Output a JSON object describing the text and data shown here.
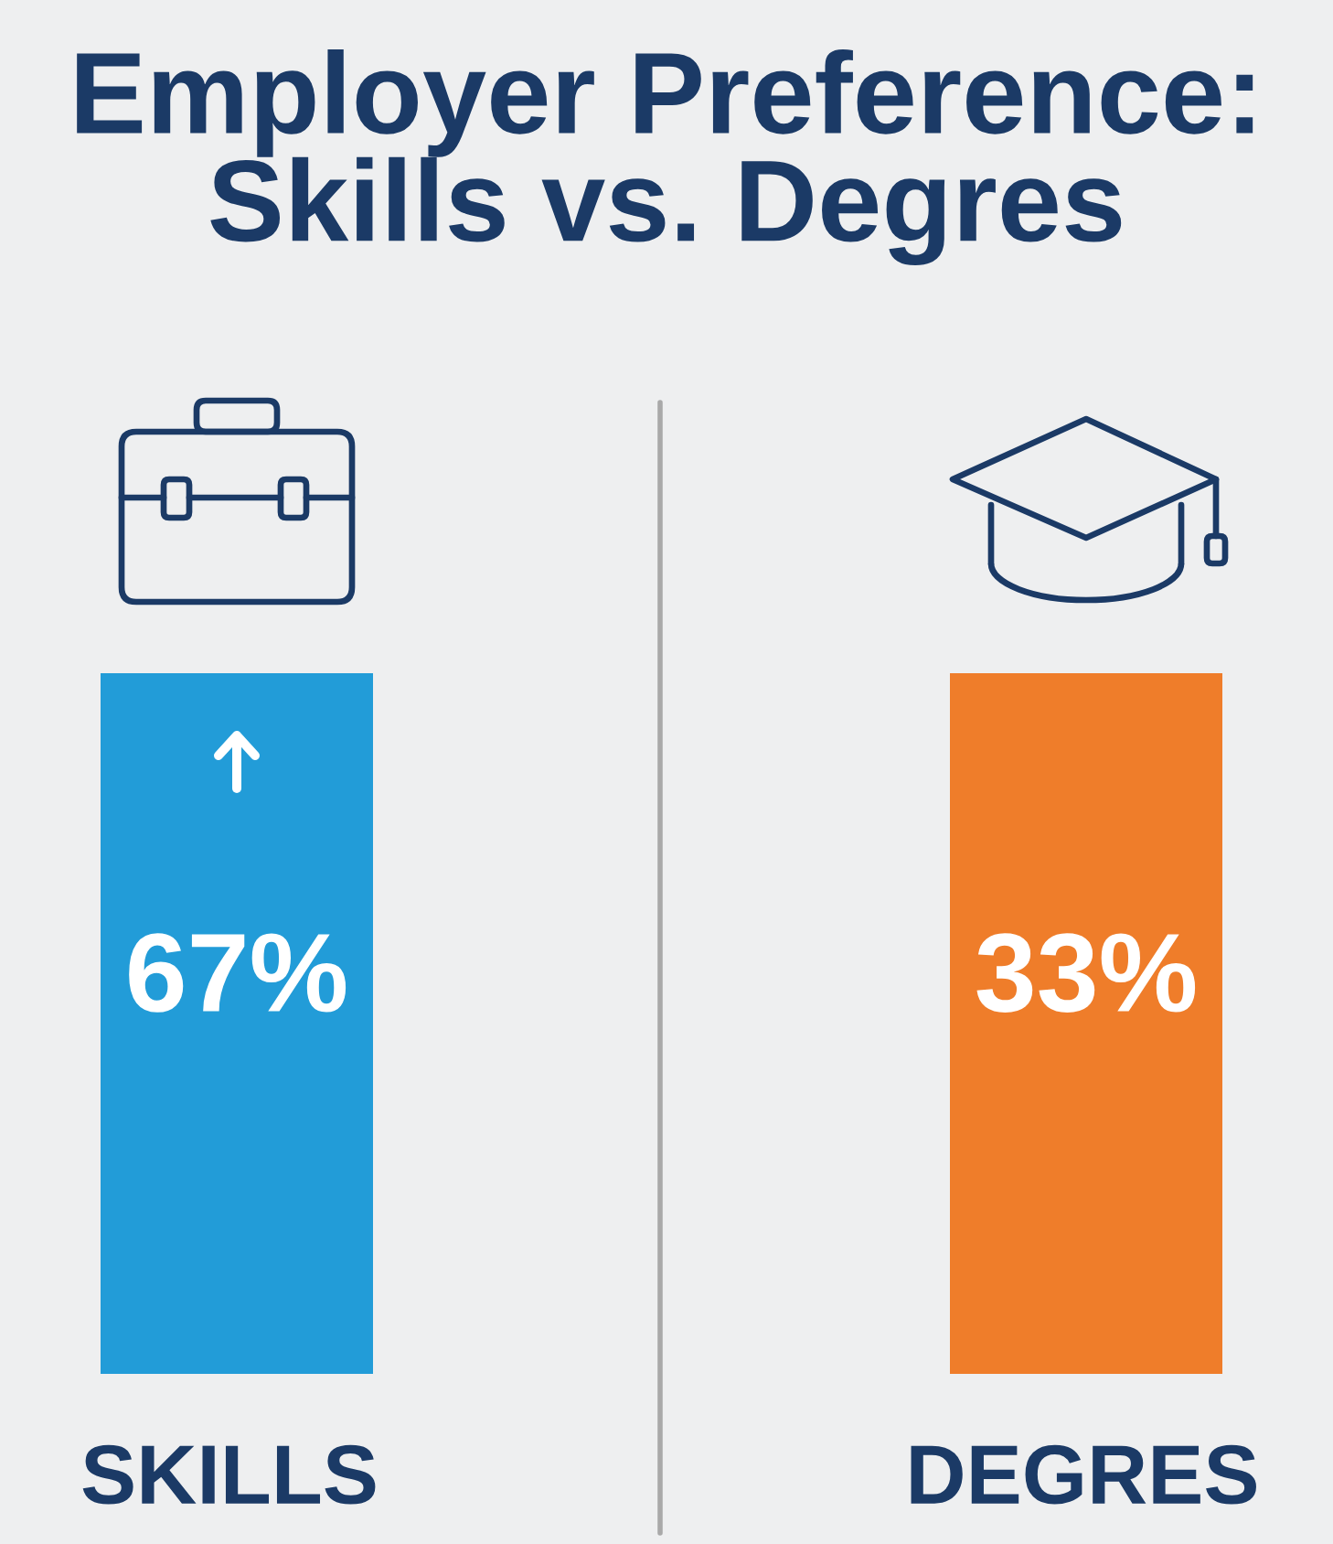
{
  "chart_data": {
    "type": "other",
    "title": "Employer Preference:\nSkills vs. Degres",
    "categories": [
      "SKILLS",
      "DEGRES"
    ],
    "values": [
      67,
      33
    ],
    "value_labels": [
      "67%",
      "33%"
    ],
    "colors": [
      "#229cd8",
      "#ef7d2a"
    ]
  }
}
